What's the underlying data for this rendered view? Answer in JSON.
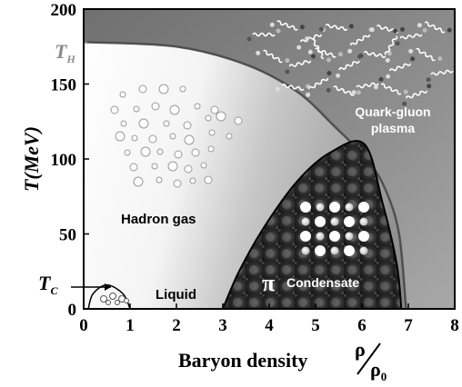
{
  "chart_data": {
    "type": "diagram",
    "xlabel": "Baryon density",
    "xlabel_symbol": "ρ",
    "xlabel_denominator": "ρ",
    "xlabel_denominator_sub": "0",
    "ylabel": "T(MeV)",
    "x_ticks": [
      "0",
      "1",
      "2",
      "3",
      "4",
      "5",
      "6",
      "7",
      "8"
    ],
    "y_ticks": [
      "0",
      "50",
      "100",
      "150",
      "200"
    ],
    "xlim": [
      0,
      8
    ],
    "ylim": [
      0,
      200
    ],
    "markers": {
      "t_h_label": "T",
      "t_h_sub": "H",
      "t_h_value": 178,
      "t_c_label": "T",
      "t_c_sub": "C"
    },
    "regions": {
      "hadron_gas": "Hadron gas",
      "quark_gluon_line1": "Quark-gluon",
      "quark_gluon_line2": "plasma",
      "liquid": "Liquid",
      "condensate_symbol": "π",
      "condensate": "Condensate"
    },
    "boundaries": {
      "hadron_plasma": [
        [
          0,
          178
        ],
        [
          2,
          175
        ],
        [
          3.5,
          163
        ],
        [
          4.6,
          145
        ],
        [
          5.4,
          122
        ],
        [
          6.1,
          100
        ],
        [
          6.5,
          80
        ],
        [
          6.8,
          50
        ],
        [
          6.95,
          0
        ]
      ],
      "condensate": [
        [
          3.0,
          0
        ],
        [
          3.35,
          25
        ],
        [
          3.9,
          55
        ],
        [
          4.6,
          85
        ],
        [
          5.3,
          104
        ],
        [
          6.05,
          110
        ],
        [
          6.45,
          70
        ],
        [
          6.75,
          30
        ],
        [
          6.85,
          0
        ]
      ],
      "liquid_gas": [
        [
          0.1,
          0
        ],
        [
          0.2,
          10
        ],
        [
          0.5,
          16
        ],
        [
          0.85,
          10
        ],
        [
          1.0,
          0
        ]
      ]
    }
  }
}
